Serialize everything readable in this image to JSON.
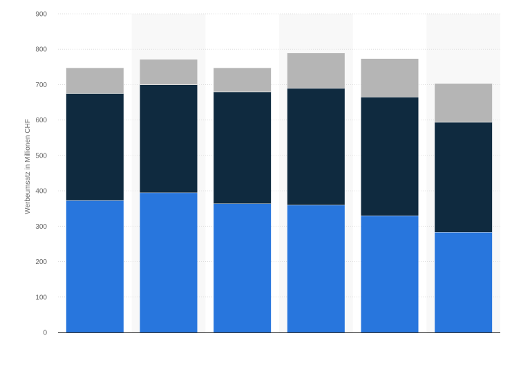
{
  "chart_data": {
    "type": "bar",
    "stacked": true,
    "categories": [
      "",
      "",
      "",
      "",
      "",
      ""
    ],
    "series": [
      {
        "color": "#2876dd",
        "values": [
          373,
          395,
          364,
          360,
          330,
          283
        ]
      },
      {
        "color": "#0f2a3f",
        "values": [
          302,
          305,
          316,
          330,
          335,
          311
        ]
      },
      {
        "color": "#b5b5b5",
        "values": [
          73,
          72,
          68,
          100,
          109,
          110
        ]
      }
    ],
    "title": "",
    "xlabel": "",
    "ylabel": "Werbeumsatz in Millionen CHF",
    "ylim": [
      0,
      900
    ],
    "yticks": [
      0,
      100,
      200,
      300,
      400,
      500,
      600,
      700,
      800,
      900
    ],
    "grid": true,
    "alternating_background": true,
    "legend": "none"
  }
}
